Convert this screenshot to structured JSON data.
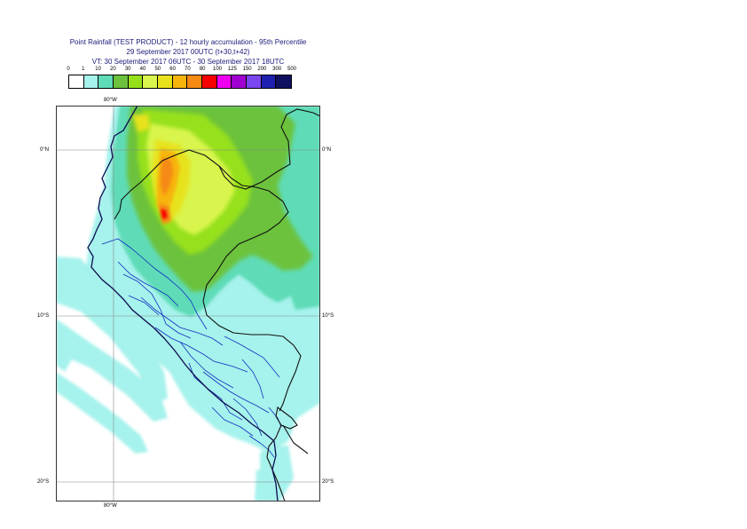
{
  "header": {
    "line1": "Point Rainfall (TEST PRODUCT) - 12 hourly accumulation - 95th Percentile",
    "line2": "29 September 2017 00UTC (t+30,t+42)",
    "line3": "VT: 30 September 2017 06UTC - 30 September 2017 18UTC"
  },
  "legend": {
    "thresholds": [
      "0",
      "1",
      "10",
      "20",
      "30",
      "40",
      "50",
      "60",
      "70",
      "80",
      "100",
      "125",
      "150",
      "200",
      "300",
      "500"
    ],
    "colors": [
      "#ffffff",
      "#a6f2ec",
      "#5edcb7",
      "#6cc23c",
      "#96e01a",
      "#d9f54e",
      "#e7e21c",
      "#f7b40b",
      "#f68a12",
      "#f60000",
      "#f000f0",
      "#a000d0",
      "#7a46f0",
      "#2020b0",
      "#101060"
    ]
  },
  "map": {
    "coords": {
      "top_lon": "80°W",
      "bottom_lon": "80°W",
      "lat_0_left": "0°N",
      "lat_0_right": "0°N",
      "lat_10_left": "10°S",
      "lat_10_right": "10°S",
      "lat_20_left": "20°S",
      "lat_20_right": "20°S"
    }
  }
}
